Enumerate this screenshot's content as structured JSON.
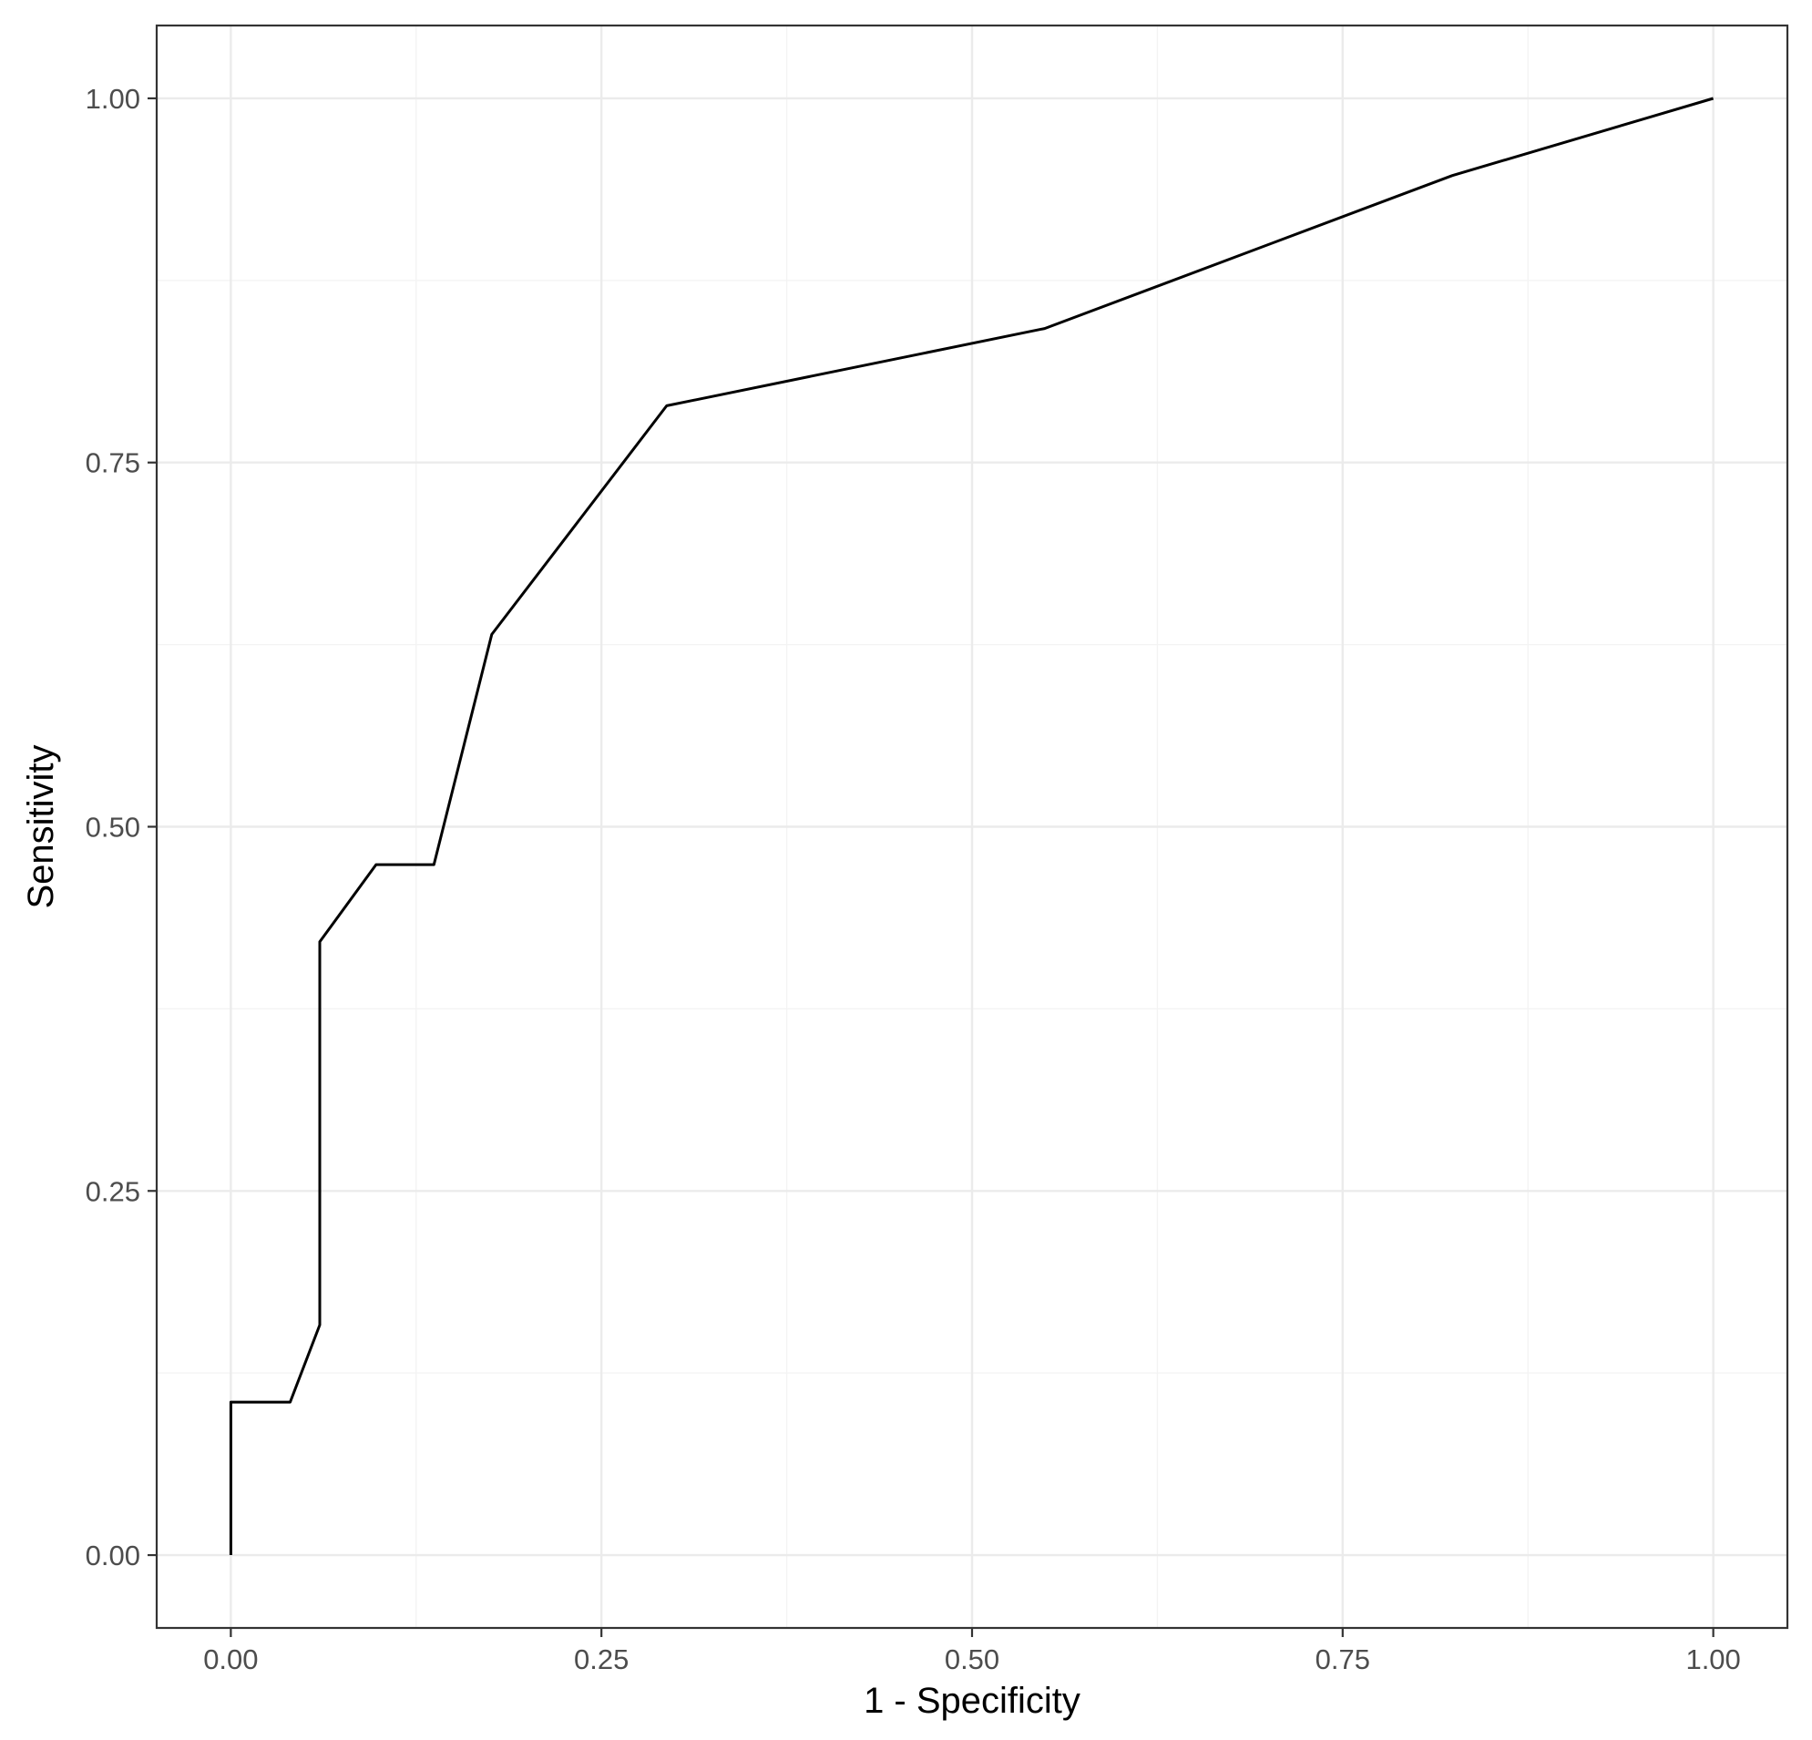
{
  "chart_data": {
    "type": "line",
    "title": "",
    "xlabel": "1 - Specificity",
    "ylabel": "Sensitivity",
    "xlim": [
      -0.05,
      1.05
    ],
    "ylim": [
      -0.05,
      1.05
    ],
    "x_ticks": [
      0,
      0.25,
      0.5,
      0.75,
      1
    ],
    "x_tick_labels": [
      "0.00",
      "0.25",
      "0.50",
      "0.75",
      "1.00"
    ],
    "y_ticks": [
      0,
      0.25,
      0.5,
      0.75,
      1
    ],
    "y_tick_labels": [
      "0.00",
      "0.25",
      "0.50",
      "0.75",
      "1.00"
    ],
    "grid": true,
    "legend": "none",
    "line_color": "#000000",
    "series": [
      {
        "x": [
          0,
          0,
          0.04,
          0.06,
          0.06,
          0.098,
          0.137,
          0.176,
          0.294,
          0.549,
          0.824,
          1.0
        ],
        "y": [
          0,
          0.105,
          0.105,
          0.158,
          0.421,
          0.474,
          0.474,
          0.632,
          0.789,
          0.842,
          0.947,
          1.0
        ]
      }
    ]
  }
}
